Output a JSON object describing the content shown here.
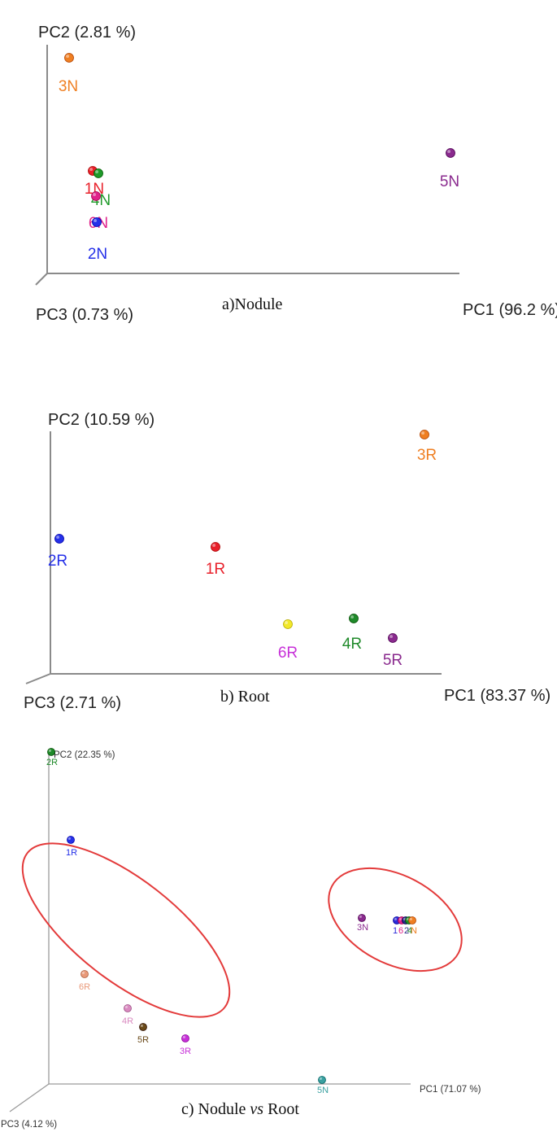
{
  "chart_data": [
    {
      "type": "scatter",
      "panel": "a",
      "caption": "a)Nodule",
      "axes": {
        "pc1": "PC1 (96.2 %)",
        "pc2": "PC2 (2.81 %)",
        "pc3": "PC3 (0.73 %)"
      },
      "points": [
        {
          "label": "3N",
          "color": "#ef7f22"
        },
        {
          "label": "1N",
          "color": "#e8202a"
        },
        {
          "label": "4N",
          "color": "#1f9a2a"
        },
        {
          "label": "6N",
          "color": "#e0228a"
        },
        {
          "label": "2N",
          "color": "#2530e8"
        },
        {
          "label": "5N",
          "color": "#8a2a8e"
        }
      ]
    },
    {
      "type": "scatter",
      "panel": "b",
      "caption": "b) Root",
      "axes": {
        "pc1": "PC1 (83.37 %)",
        "pc2": "PC2 (10.59 %)",
        "pc3": "PC3 (2.71 %)"
      },
      "points": [
        {
          "label": "3R",
          "color": "#ef7f22"
        },
        {
          "label": "2R",
          "color": "#2530e8"
        },
        {
          "label": "1R",
          "color": "#e8202a"
        },
        {
          "label": "6R",
          "color": "#c730d8",
          "marker": "#f2e82a"
        },
        {
          "label": "4R",
          "color": "#1f8a2a"
        },
        {
          "label": "5R",
          "color": "#8a2a8e"
        }
      ]
    },
    {
      "type": "scatter",
      "panel": "c",
      "caption": "c) Nodule vs Root",
      "caption_parts": {
        "pre": "c) Nodule ",
        "vs": "vs",
        "post": " Root"
      },
      "axes": {
        "pc1": "PC1 (71.07 %)",
        "pc2": "PC2 (22.35 %)",
        "pc3": "PC3 (4.12 %)"
      },
      "points": [
        {
          "label": "2R",
          "color": "#1f8a2a"
        },
        {
          "label": "1R",
          "color": "#2530e8"
        },
        {
          "label": "6R",
          "color": "#e99a7a"
        },
        {
          "label": "4R",
          "color": "#d98ac0"
        },
        {
          "label": "5R",
          "color": "#6a4a1a"
        },
        {
          "label": "3R",
          "color": "#c730d8"
        },
        {
          "label": "3N",
          "color": "#8a2a8e"
        },
        {
          "label": "1",
          "color": "#2a2ad8"
        },
        {
          "label": "6",
          "color": "#e0228a"
        },
        {
          "label": "2",
          "color": "#2a2a8a"
        },
        {
          "label": "4",
          "color": "#1f8a2a"
        },
        {
          "label": "N",
          "color": "#ef7f22"
        },
        {
          "label": "5N",
          "color": "#3aa0a0"
        }
      ]
    }
  ]
}
